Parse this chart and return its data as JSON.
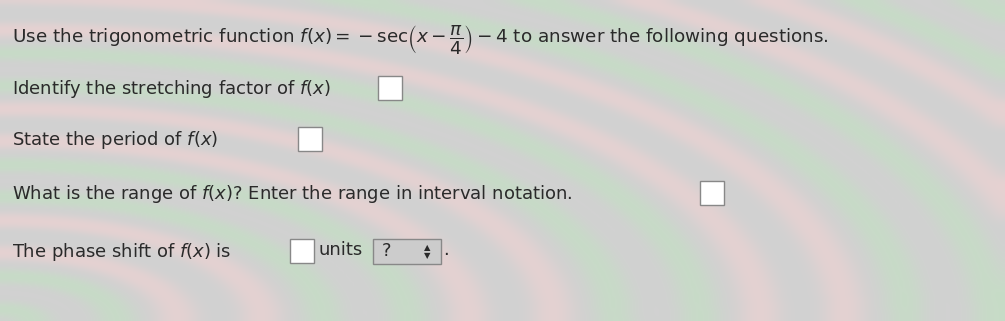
{
  "bg_color": "#d8d8d8",
  "text_color": "#2a2a2a",
  "font_size_title": 13.2,
  "font_size_body": 13.0,
  "box_color": "#ffffff",
  "box_edge_color": "#888888",
  "button_color": "#cccccc",
  "button_edge_color": "#888888",
  "stripe_colors_green": [
    "#c5d9c0",
    "#a8c8a0",
    "#d0e0cc"
  ],
  "stripe_colors_pink": [
    "#e8d0d0",
    "#ddc0c0",
    "#f0dede"
  ],
  "bg_base": "#d0d0d0"
}
